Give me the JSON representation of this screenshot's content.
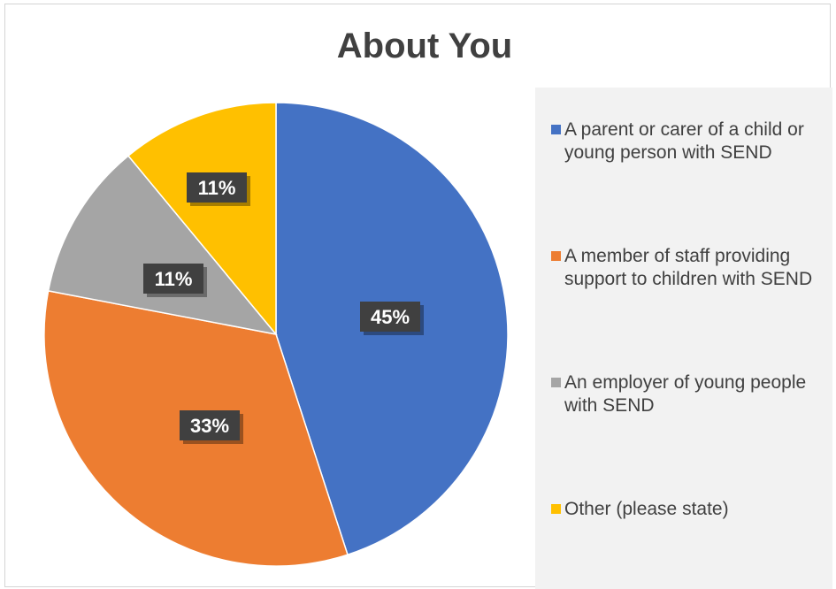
{
  "chart_data": {
    "type": "pie",
    "title": "About You",
    "categories": [
      "A parent or carer of a child or young person with SEND",
      "A member of staff providing support to children with SEND",
      "An employer of young people with SEND",
      "Other (please state)"
    ],
    "values": [
      45,
      33,
      11,
      11
    ],
    "data_labels": [
      "45%",
      "33%",
      "11%",
      "11%"
    ],
    "colors": [
      "#4472c4",
      "#ed7d31",
      "#a5a5a5",
      "#ffc000"
    ],
    "legend_position": "right"
  }
}
